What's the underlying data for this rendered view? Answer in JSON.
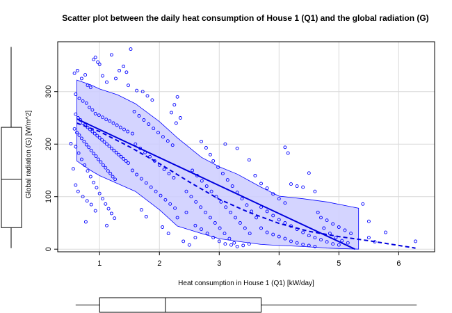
{
  "chart_data": {
    "type": "scatter",
    "title": "Scatter plot between the daily heat consumption of House 1 (Q1) and the global radiation (G)",
    "xlabel": "Heat consumption in House 1 (Q1) [kW/day]",
    "ylabel": "Global radiation (G) [W/m^2]",
    "xlim": [
      0.3,
      6.6
    ],
    "ylim": [
      -5,
      395
    ],
    "xticks": [
      1,
      2,
      3,
      4,
      5,
      6
    ],
    "yticks": [
      0,
      100,
      200,
      300
    ],
    "grid": true,
    "colors": {
      "points": "#0000ff",
      "band_fill": "#ccccff",
      "band_edge": "#0000ff",
      "lines": "#0000dd"
    },
    "linear_fit": {
      "x": [
        0.62,
        5.27
      ],
      "y": [
        248,
        0
      ]
    },
    "smooth_fit": {
      "x": [
        0.62,
        1.0,
        1.5,
        2.0,
        2.5,
        3.0,
        3.5,
        4.0,
        4.5,
        5.0,
        5.5,
        6.28
      ],
      "y": [
        240,
        224,
        195,
        163,
        128,
        95,
        70,
        49,
        34,
        24,
        16,
        2
      ]
    },
    "confidence_band": {
      "x": [
        0.62,
        0.85,
        1.0,
        1.3,
        1.6,
        2.0,
        2.3,
        2.7,
        3.0,
        3.3,
        3.7,
        4.0,
        4.4,
        4.8,
        5.33
      ],
      "upper": [
        322,
        313,
        305,
        294,
        277,
        243,
        212,
        175,
        157,
        143,
        118,
        101,
        96,
        90,
        78
      ],
      "lower": [
        168,
        150,
        140,
        125,
        110,
        75,
        44,
        30,
        20,
        15,
        9,
        7,
        5,
        2,
        0
      ]
    },
    "boxplot_x": {
      "min": 0.6,
      "q1": 1.0,
      "median": 2.1,
      "q3": 3.7,
      "max": 6.3
    },
    "boxplot_y": {
      "min": 2,
      "q1": 41,
      "median": 133,
      "q3": 232,
      "max": 385
    },
    "points": [
      [
        0.58,
        335
      ],
      [
        0.63,
        340
      ],
      [
        0.7,
        325
      ],
      [
        0.76,
        332
      ],
      [
        0.8,
        312
      ],
      [
        0.85,
        308
      ],
      [
        0.9,
        361
      ],
      [
        0.93,
        365
      ],
      [
        0.97,
        356
      ],
      [
        1.0,
        352
      ],
      [
        1.05,
        330
      ],
      [
        1.12,
        318
      ],
      [
        1.2,
        370
      ],
      [
        1.27,
        325
      ],
      [
        1.33,
        340
      ],
      [
        1.4,
        348
      ],
      [
        1.45,
        337
      ],
      [
        1.52,
        381
      ],
      [
        1.48,
        312
      ],
      [
        1.62,
        302
      ],
      [
        0.6,
        295
      ],
      [
        0.66,
        287
      ],
      [
        0.72,
        282
      ],
      [
        0.78,
        278
      ],
      [
        0.83,
        270
      ],
      [
        0.88,
        265
      ],
      [
        0.93,
        258
      ],
      [
        0.99,
        255
      ],
      [
        1.05,
        251
      ],
      [
        1.11,
        247
      ],
      [
        1.17,
        244
      ],
      [
        1.23,
        240
      ],
      [
        1.29,
        236
      ],
      [
        1.35,
        232
      ],
      [
        1.41,
        228
      ],
      [
        1.47,
        224
      ],
      [
        1.55,
        220
      ],
      [
        0.6,
        257
      ],
      [
        0.64,
        250
      ],
      [
        0.68,
        246
      ],
      [
        0.72,
        240
      ],
      [
        0.76,
        236
      ],
      [
        0.8,
        232
      ],
      [
        0.84,
        228
      ],
      [
        0.88,
        224
      ],
      [
        0.92,
        220
      ],
      [
        0.96,
        216
      ],
      [
        1.0,
        212
      ],
      [
        1.04,
        208
      ],
      [
        1.08,
        204
      ],
      [
        1.12,
        200
      ],
      [
        1.16,
        196
      ],
      [
        1.2,
        192
      ],
      [
        1.24,
        188
      ],
      [
        1.28,
        184
      ],
      [
        1.32,
        180
      ],
      [
        1.36,
        176
      ],
      [
        1.4,
        172
      ],
      [
        1.44,
        168
      ],
      [
        1.48,
        164
      ],
      [
        0.58,
        229
      ],
      [
        0.62,
        222
      ],
      [
        0.66,
        217
      ],
      [
        0.7,
        211
      ],
      [
        0.74,
        205
      ],
      [
        0.78,
        199
      ],
      [
        0.82,
        194
      ],
      [
        0.86,
        188
      ],
      [
        0.9,
        182
      ],
      [
        0.94,
        177
      ],
      [
        0.98,
        171
      ],
      [
        1.02,
        166
      ],
      [
        1.06,
        160
      ],
      [
        1.1,
        155
      ],
      [
        1.14,
        149
      ],
      [
        1.18,
        144
      ],
      [
        1.22,
        138
      ],
      [
        1.26,
        133
      ],
      [
        0.6,
        195
      ],
      [
        0.65,
        183
      ],
      [
        0.7,
        171
      ],
      [
        0.75,
        160
      ],
      [
        0.8,
        149
      ],
      [
        0.85,
        138
      ],
      [
        0.9,
        127
      ],
      [
        0.95,
        117
      ],
      [
        1.0,
        106
      ],
      [
        1.05,
        96
      ],
      [
        1.1,
        86
      ],
      [
        1.15,
        77
      ],
      [
        1.2,
        68
      ],
      [
        1.25,
        59
      ],
      [
        0.64,
        110
      ],
      [
        0.72,
        100
      ],
      [
        0.79,
        92
      ],
      [
        0.86,
        85
      ],
      [
        0.93,
        73
      ],
      [
        1.12,
        45
      ],
      [
        0.52,
        201
      ],
      [
        0.56,
        153
      ],
      [
        0.6,
        122
      ],
      [
        0.77,
        52
      ],
      [
        1.55,
        150
      ],
      [
        1.62,
        142
      ],
      [
        1.7,
        134
      ],
      [
        1.78,
        126
      ],
      [
        1.86,
        118
      ],
      [
        1.94,
        110
      ],
      [
        2.02,
        102
      ],
      [
        2.1,
        94
      ],
      [
        2.18,
        86
      ],
      [
        2.26,
        78
      ],
      [
        1.6,
        200
      ],
      [
        1.68,
        192
      ],
      [
        1.76,
        184
      ],
      [
        1.84,
        176
      ],
      [
        1.92,
        168
      ],
      [
        2.0,
        160
      ],
      [
        2.08,
        152
      ],
      [
        2.16,
        144
      ],
      [
        2.24,
        136
      ],
      [
        1.58,
        262
      ],
      [
        1.66,
        254
      ],
      [
        1.74,
        246
      ],
      [
        1.82,
        238
      ],
      [
        1.9,
        230
      ],
      [
        1.98,
        222
      ],
      [
        2.06,
        214
      ],
      [
        2.14,
        206
      ],
      [
        2.22,
        198
      ],
      [
        1.72,
        300
      ],
      [
        1.8,
        292
      ],
      [
        1.88,
        284
      ],
      [
        2.3,
        290
      ],
      [
        2.25,
        275
      ],
      [
        2.2,
        260
      ],
      [
        2.35,
        250
      ],
      [
        2.28,
        240
      ],
      [
        1.7,
        75
      ],
      [
        1.78,
        62
      ],
      [
        2.05,
        42
      ],
      [
        2.15,
        30
      ],
      [
        2.3,
        60
      ],
      [
        2.45,
        70
      ],
      [
        2.4,
        15
      ],
      [
        2.5,
        8
      ],
      [
        2.6,
        22
      ],
      [
        2.7,
        205
      ],
      [
        2.78,
        193
      ],
      [
        2.85,
        180
      ],
      [
        2.9,
        168
      ],
      [
        2.98,
        156
      ],
      [
        3.06,
        144
      ],
      [
        3.14,
        132
      ],
      [
        3.22,
        120
      ],
      [
        3.3,
        108
      ],
      [
        3.38,
        96
      ],
      [
        3.46,
        84
      ],
      [
        3.54,
        72
      ],
      [
        3.62,
        60
      ],
      [
        2.55,
        150
      ],
      [
        2.63,
        140
      ],
      [
        2.71,
        130
      ],
      [
        2.79,
        120
      ],
      [
        2.87,
        110
      ],
      [
        2.95,
        100
      ],
      [
        3.03,
        90
      ],
      [
        3.11,
        80
      ],
      [
        3.19,
        70
      ],
      [
        3.27,
        60
      ],
      [
        3.35,
        50
      ],
      [
        3.43,
        40
      ],
      [
        3.51,
        30
      ],
      [
        2.45,
        110
      ],
      [
        2.53,
        100
      ],
      [
        2.61,
        90
      ],
      [
        2.69,
        80
      ],
      [
        2.77,
        70
      ],
      [
        2.85,
        60
      ],
      [
        2.93,
        50
      ],
      [
        3.01,
        40
      ],
      [
        3.09,
        30
      ],
      [
        3.17,
        20
      ],
      [
        3.25,
        12
      ],
      [
        2.6,
        45
      ],
      [
        2.7,
        38
      ],
      [
        2.8,
        30
      ],
      [
        2.9,
        22
      ],
      [
        3.0,
        15
      ],
      [
        3.1,
        10
      ],
      [
        3.2,
        8
      ],
      [
        3.3,
        5
      ],
      [
        3.4,
        7
      ],
      [
        3.5,
        10
      ],
      [
        3.1,
        200
      ],
      [
        3.3,
        192
      ],
      [
        3.5,
        170
      ],
      [
        3.6,
        140
      ],
      [
        3.7,
        125
      ],
      [
        3.8,
        116
      ],
      [
        3.9,
        105
      ],
      [
        4.0,
        96
      ],
      [
        4.1,
        88
      ],
      [
        4.2,
        124
      ],
      [
        4.3,
        120
      ],
      [
        4.4,
        118
      ],
      [
        4.5,
        145
      ],
      [
        4.6,
        110
      ],
      [
        3.7,
        40
      ],
      [
        3.8,
        32
      ],
      [
        3.9,
        28
      ],
      [
        4.0,
        24
      ],
      [
        4.1,
        20
      ],
      [
        4.2,
        15
      ],
      [
        4.3,
        12
      ],
      [
        4.4,
        9
      ],
      [
        4.5,
        7
      ],
      [
        4.6,
        5
      ],
      [
        3.7,
        80
      ],
      [
        3.8,
        72
      ],
      [
        3.9,
        64
      ],
      [
        4.0,
        56
      ],
      [
        4.1,
        50
      ],
      [
        4.2,
        44
      ],
      [
        4.3,
        38
      ],
      [
        4.4,
        32
      ],
      [
        4.5,
        26
      ],
      [
        4.6,
        22
      ],
      [
        4.7,
        18
      ],
      [
        4.8,
        14
      ],
      [
        4.9,
        10
      ],
      [
        5.0,
        8
      ],
      [
        4.1,
        194
      ],
      [
        4.15,
        183
      ],
      [
        4.65,
        70
      ],
      [
        4.7,
        60
      ],
      [
        4.8,
        55
      ],
      [
        4.9,
        48
      ],
      [
        5.0,
        42
      ],
      [
        5.1,
        36
      ],
      [
        5.2,
        30
      ],
      [
        4.75,
        40
      ],
      [
        4.85,
        30
      ],
      [
        4.95,
        22
      ],
      [
        5.05,
        16
      ],
      [
        5.15,
        12
      ],
      [
        5.4,
        86
      ],
      [
        5.5,
        53
      ],
      [
        5.5,
        22
      ],
      [
        5.6,
        14
      ],
      [
        5.78,
        32
      ],
      [
        6.28,
        15
      ]
    ]
  }
}
